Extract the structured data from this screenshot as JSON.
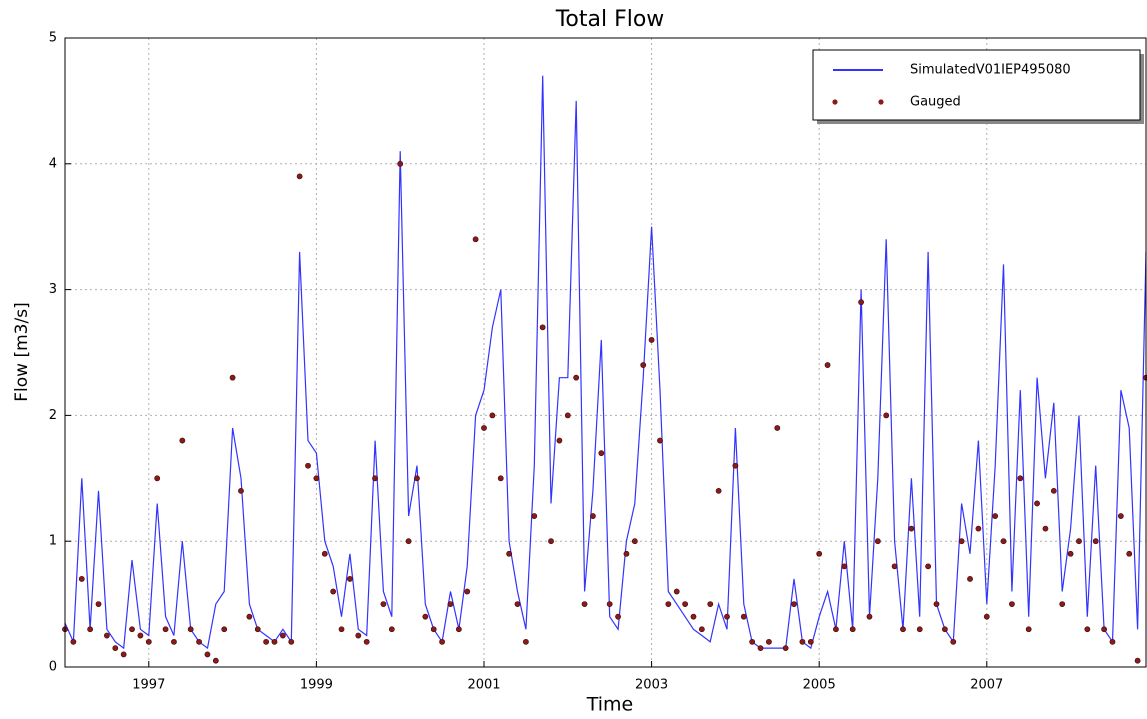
{
  "chart_data": {
    "type": "line",
    "title": "Total Flow",
    "x_label": "Time",
    "y_label": "Flow [m3/s]",
    "x": [
      1996,
      1996.1,
      1996.2,
      1996.3,
      1996.4,
      1996.5,
      1996.6,
      1996.7,
      1996.8,
      1996.9,
      1997,
      1997.1,
      1997.2,
      1997.3,
      1997.4,
      1997.5,
      1997.6,
      1997.7,
      1997.8,
      1997.9,
      1998,
      1998.1,
      1998.2,
      1998.3,
      1998.4,
      1998.5,
      1998.6,
      1998.7,
      1998.8,
      1998.9,
      1999,
      1999.1,
      1999.2,
      1999.3,
      1999.4,
      1999.5,
      1999.6,
      1999.7,
      1999.8,
      1999.9,
      2000,
      2000.1,
      2000.2,
      2000.3,
      2000.4,
      2000.5,
      2000.6,
      2000.7,
      2000.8,
      2000.9,
      2001,
      2001.1,
      2001.2,
      2001.3,
      2001.4,
      2001.5,
      2001.6,
      2001.7,
      2001.8,
      2001.9,
      2002,
      2002.1,
      2002.2,
      2002.3,
      2002.4,
      2002.5,
      2002.6,
      2002.7,
      2002.8,
      2002.9,
      2003,
      2003.1,
      2003.2,
      2003.3,
      2003.4,
      2003.5,
      2003.6,
      2003.7,
      2003.8,
      2003.9,
      2004,
      2004.1,
      2004.2,
      2004.3,
      2004.4,
      2004.5,
      2004.6,
      2004.7,
      2004.8,
      2004.9,
      2005,
      2005.1,
      2005.2,
      2005.3,
      2005.4,
      2005.5,
      2005.6,
      2005.7,
      2005.8,
      2005.9,
      2006,
      2006.1,
      2006.2,
      2006.3,
      2006.4,
      2006.5,
      2006.6,
      2006.7,
      2006.8,
      2006.9,
      2007,
      2007.1,
      2007.2,
      2007.3,
      2007.4,
      2007.5,
      2007.6,
      2007.7,
      2007.8,
      2007.9,
      2008,
      2008.1,
      2008.2,
      2008.3,
      2008.4,
      2008.5,
      2008.6,
      2008.7,
      2008.8,
      2008.9
    ],
    "series": [
      {
        "name": "SimulatedV01IEP495080",
        "color": "#3333ff",
        "style": "line",
        "values": [
          0.35,
          0.2,
          1.5,
          0.3,
          1.4,
          0.3,
          0.2,
          0.15,
          0.85,
          0.3,
          0.25,
          1.3,
          0.4,
          0.25,
          1.0,
          0.3,
          0.2,
          0.15,
          0.5,
          0.6,
          1.9,
          1.5,
          0.5,
          0.3,
          0.25,
          0.2,
          0.3,
          0.2,
          3.3,
          1.8,
          1.7,
          1.0,
          0.8,
          0.4,
          0.9,
          0.3,
          0.25,
          1.8,
          0.6,
          0.4,
          4.1,
          1.2,
          1.6,
          0.5,
          0.3,
          0.2,
          0.6,
          0.3,
          0.8,
          2.0,
          2.2,
          2.7,
          3.0,
          1.0,
          0.6,
          0.3,
          1.6,
          4.7,
          1.3,
          2.3,
          2.3,
          4.5,
          0.6,
          1.4,
          2.6,
          0.4,
          0.3,
          1.0,
          1.3,
          2.3,
          3.5,
          2.2,
          0.6,
          0.5,
          0.4,
          0.3,
          0.25,
          0.2,
          0.5,
          0.3,
          1.9,
          0.5,
          0.2,
          0.15,
          0.15,
          0.15,
          0.15,
          0.7,
          0.2,
          0.15,
          0.4,
          0.6,
          0.3,
          1.0,
          0.3,
          3.0,
          0.4,
          1.5,
          3.4,
          1.0,
          0.3,
          1.5,
          0.4,
          3.3,
          0.5,
          0.3,
          0.2,
          1.3,
          0.9,
          1.8,
          0.5,
          1.6,
          3.2,
          0.6,
          2.2,
          0.4,
          2.3,
          1.5,
          2.1,
          0.6,
          1.1,
          2.0,
          0.4,
          1.6,
          0.3,
          0.2,
          2.2,
          1.9,
          0.3,
          3.3
        ]
      },
      {
        "name": "Gauged",
        "color": "#8b1a1a",
        "style": "dots",
        "values": [
          0.3,
          0.2,
          0.7,
          0.3,
          0.5,
          0.25,
          0.15,
          0.1,
          0.3,
          0.25,
          0.2,
          1.5,
          0.3,
          0.2,
          1.8,
          0.3,
          0.2,
          0.1,
          0.05,
          0.3,
          2.3,
          1.4,
          0.4,
          0.3,
          0.2,
          0.2,
          0.25,
          0.2,
          3.9,
          1.6,
          1.5,
          0.9,
          0.6,
          0.3,
          0.7,
          0.25,
          0.2,
          1.5,
          0.5,
          0.3,
          4.0,
          1.0,
          1.5,
          0.4,
          0.3,
          0.2,
          0.5,
          0.3,
          0.6,
          3.4,
          1.9,
          2.0,
          1.5,
          0.9,
          0.5,
          0.2,
          1.2,
          2.7,
          1.0,
          1.8,
          2.0,
          2.3,
          0.5,
          1.2,
          1.7,
          0.5,
          0.4,
          0.9,
          1.0,
          2.4,
          2.6,
          1.8,
          0.5,
          0.6,
          0.5,
          0.4,
          0.3,
          0.5,
          1.4,
          0.4,
          1.6,
          0.4,
          0.2,
          0.15,
          0.2,
          1.9,
          0.15,
          0.5,
          0.2,
          0.2,
          0.9,
          2.4,
          0.3,
          0.8,
          0.3,
          2.9,
          0.4,
          1.0,
          2.0,
          0.8,
          0.3,
          1.1,
          0.3,
          0.8,
          0.5,
          0.3,
          0.2,
          1.0,
          0.7,
          1.1,
          0.4,
          1.2,
          1.0,
          0.5,
          1.5,
          0.3,
          1.3,
          1.1,
          1.4,
          0.5,
          0.9,
          1.0,
          0.3,
          1.0,
          0.3,
          0.2,
          1.2,
          0.9,
          0.05,
          2.3
        ]
      }
    ],
    "xlim": [
      1996,
      2008.9
    ],
    "xticks": [
      1997,
      1999,
      2001,
      2003,
      2005,
      2007
    ],
    "ylim": [
      0,
      5
    ],
    "yticks": [
      0,
      1,
      2,
      3,
      4,
      5
    ],
    "grid": true,
    "legend": "upper right"
  }
}
